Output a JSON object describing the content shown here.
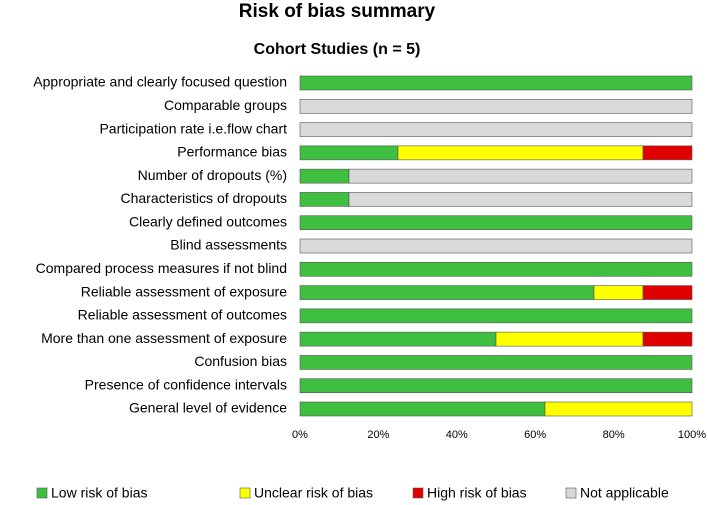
{
  "chart_data": {
    "type": "stacked-bar-horizontal",
    "title": "Risk of bias summary",
    "subtitle": "Cohort Studies (n = 5)",
    "categories": [
      "Appropriate and clearly focused question",
      "Comparable groups",
      "Participation rate i.e.flow chart",
      "Performance bias",
      "Number of dropouts (%)",
      "Characteristics of dropouts",
      "Clearly defined outcomes",
      "Blind assessments",
      "Compared process measures if not blind",
      "Reliable assessment of exposure",
      "Reliable assessment of outcomes",
      "More than one assessment of exposure",
      "Confusion bias",
      "Presence of confidence intervals",
      "General level of evidence"
    ],
    "series": [
      {
        "name": "Low risk of bias",
        "color": "#3fbf3f",
        "values": [
          100,
          0,
          0,
          25,
          12.5,
          12.5,
          100,
          0,
          100,
          75,
          100,
          50,
          100,
          100,
          62.5
        ]
      },
      {
        "name": "Unclear risk of bias",
        "color": "#ffff00",
        "values": [
          0,
          0,
          0,
          62.5,
          0,
          0,
          0,
          0,
          0,
          12.5,
          0,
          37.5,
          0,
          0,
          37.5
        ]
      },
      {
        "name": "High risk of bias",
        "color": "#e00000",
        "values": [
          0,
          0,
          0,
          12.5,
          0,
          0,
          0,
          0,
          0,
          12.5,
          0,
          12.5,
          0,
          0,
          0
        ]
      },
      {
        "name": "Not applicable",
        "color": "#d9d9d9",
        "values": [
          0,
          100,
          100,
          0,
          87.5,
          87.5,
          0,
          100,
          0,
          0,
          0,
          0,
          0,
          0,
          0
        ]
      }
    ],
    "xlim": [
      0,
      100
    ],
    "xticks": [
      {
        "value": 0,
        "label": "0%"
      },
      {
        "value": 20,
        "label": "20%"
      },
      {
        "value": 40,
        "label": "40%"
      },
      {
        "value": 60,
        "label": "60%"
      },
      {
        "value": 80,
        "label": "80%"
      },
      {
        "value": 100,
        "label": "100%"
      }
    ],
    "legend": "bottom"
  }
}
